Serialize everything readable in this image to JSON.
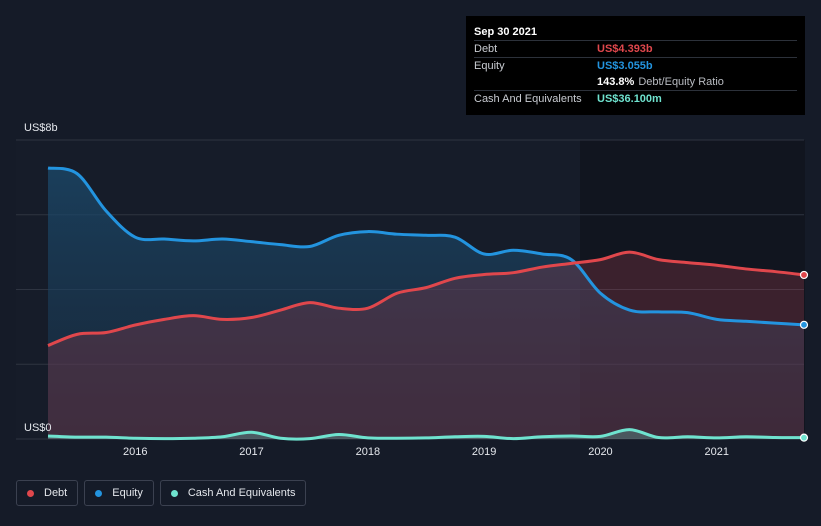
{
  "colors": {
    "debt": "#e0474c",
    "equity": "#2394df",
    "cash": "#6fe3cf",
    "background": "#151b28",
    "grid": "#2e3441"
  },
  "y_axis": {
    "top_label": "US$8b",
    "bottom_label": "US$0"
  },
  "tooltip": {
    "date": "Sep 30 2021",
    "rows": [
      {
        "label": "Debt",
        "value": "US$4.393b",
        "color": "#e0474c"
      },
      {
        "label": "Equity",
        "value": "US$3.055b",
        "color": "#2394df"
      },
      {
        "label": "",
        "value": "143.8%",
        "suffix": "Debt/Equity Ratio",
        "color": "#ffffff"
      },
      {
        "label": "Cash And Equivalents",
        "value": "US$36.100m",
        "color": "#6fe3cf"
      }
    ]
  },
  "legend": [
    {
      "label": "Debt",
      "color": "#e0474c"
    },
    {
      "label": "Equity",
      "color": "#2394df"
    },
    {
      "label": "Cash And Equivalents",
      "color": "#6fe3cf"
    }
  ],
  "chart_data": {
    "type": "area",
    "ylim": [
      0,
      8
    ],
    "x_ticks": [
      "2016",
      "2017",
      "2018",
      "2019",
      "2020",
      "2021"
    ],
    "x_tick_values": [
      2016,
      2017,
      2018,
      2019,
      2020,
      2021
    ],
    "xlim": [
      2015.25,
      2021.75
    ],
    "grid": true,
    "series": [
      {
        "name": "Debt",
        "x": [
          2015.25,
          2015.5,
          2015.75,
          2016.0,
          2016.25,
          2016.5,
          2016.75,
          2017.0,
          2017.25,
          2017.5,
          2017.75,
          2018.0,
          2018.25,
          2018.5,
          2018.75,
          2019.0,
          2019.25,
          2019.5,
          2019.75,
          2020.0,
          2020.25,
          2020.5,
          2020.75,
          2021.0,
          2021.25,
          2021.5,
          2021.75
        ],
        "values": [
          2.5,
          2.8,
          2.85,
          3.05,
          3.2,
          3.3,
          3.2,
          3.25,
          3.45,
          3.65,
          3.5,
          3.5,
          3.9,
          4.05,
          4.3,
          4.4,
          4.45,
          4.6,
          4.7,
          4.8,
          5.0,
          4.8,
          4.72,
          4.65,
          4.55,
          4.48,
          4.39
        ]
      },
      {
        "name": "Equity",
        "x": [
          2015.25,
          2015.5,
          2015.75,
          2016.0,
          2016.25,
          2016.5,
          2016.75,
          2017.0,
          2017.25,
          2017.5,
          2017.75,
          2018.0,
          2018.25,
          2018.5,
          2018.75,
          2019.0,
          2019.25,
          2019.5,
          2019.75,
          2020.0,
          2020.25,
          2020.5,
          2020.75,
          2021.0,
          2021.25,
          2021.5,
          2021.75
        ],
        "values": [
          7.25,
          7.1,
          6.1,
          5.4,
          5.35,
          5.3,
          5.35,
          5.28,
          5.2,
          5.15,
          5.45,
          5.55,
          5.48,
          5.45,
          5.4,
          4.95,
          5.05,
          4.95,
          4.8,
          3.9,
          3.45,
          3.4,
          3.38,
          3.2,
          3.15,
          3.1,
          3.055
        ]
      },
      {
        "name": "Cash And Equivalents",
        "x": [
          2015.25,
          2015.5,
          2015.75,
          2016.0,
          2016.25,
          2016.5,
          2016.75,
          2017.0,
          2017.25,
          2017.5,
          2017.75,
          2018.0,
          2018.25,
          2018.5,
          2018.75,
          2019.0,
          2019.25,
          2019.5,
          2019.75,
          2020.0,
          2020.25,
          2020.5,
          2020.75,
          2021.0,
          2021.25,
          2021.5,
          2021.75
        ],
        "values": [
          0.08,
          0.05,
          0.05,
          0.02,
          0.01,
          0.02,
          0.06,
          0.18,
          0.02,
          0.01,
          0.12,
          0.03,
          0.02,
          0.03,
          0.06,
          0.07,
          0.01,
          0.06,
          0.08,
          0.07,
          0.25,
          0.04,
          0.06,
          0.03,
          0.06,
          0.04,
          0.036
        ]
      }
    ]
  }
}
